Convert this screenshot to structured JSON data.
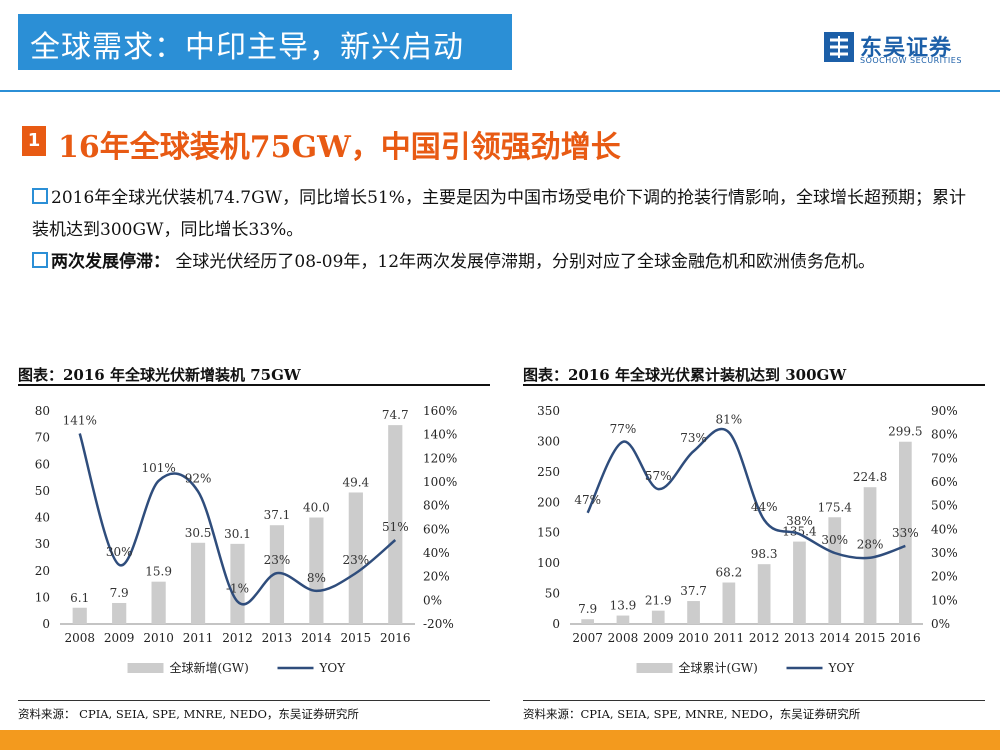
{
  "header": {
    "title": "全球需求：中印主导，新兴启动",
    "logo_cn": "东吴证券",
    "logo_en": "SOOCHOW SECURITIES"
  },
  "section": {
    "number": "1",
    "title": "16年全球装机75GW，中国引领强劲增长"
  },
  "paragraphs": {
    "p1": "2016年全球光伏装机74.7GW，同比增长51%，主要是因为中国市场受电价下调的抢装行情影响，全球增长超预期；累计装机达到300GW，同比增长33%。",
    "p2_bold": "两次发展停滞：",
    "p2": "全球光伏经历了08-09年，12年两次发展停滞期，分别对应了全球金融危机和欧洲债务危机。"
  },
  "charts_meta": {
    "left_title": "图表：2016 年全球光伏新增装机 75GW",
    "right_title": "图表：2016 年全球光伏累计装机达到 300GW",
    "left_source": "资料来源：  CPIA, SEIA, SPE, MNRE, NEDO，东吴证券研究所",
    "right_source": "资料来源：CPIA, SEIA, SPE, MNRE, NEDO，东吴证券研究所"
  },
  "colors": {
    "bar": "#cccccc",
    "line": "#2f4d7c",
    "accent": "#e85a13",
    "brand": "#2b8fd6"
  },
  "chart_data": [
    {
      "type": "bar",
      "categories": [
        "2008",
        "2009",
        "2010",
        "2011",
        "2012",
        "2013",
        "2014",
        "2015",
        "2016"
      ],
      "series": [
        {
          "name": "全球新增(GW)",
          "type": "bar",
          "axis": "left",
          "values": [
            6.1,
            7.9,
            15.9,
            30.5,
            30.1,
            37.1,
            40.0,
            49.4,
            74.7
          ],
          "labels": [
            "6.1",
            "7.9",
            "15.9",
            "30.5",
            "30.1",
            "37.1",
            "40.0",
            "49.4",
            "74.7"
          ]
        },
        {
          "name": "YOY",
          "type": "line",
          "axis": "right",
          "values": [
            141,
            30,
            101,
            92,
            -1,
            23,
            8,
            23,
            51
          ],
          "labels": [
            "141%",
            "30%",
            "101%",
            "92%",
            "-1%",
            "23%",
            "8%",
            "23%",
            "51%"
          ]
        }
      ],
      "y_left": {
        "min": 0,
        "max": 80,
        "ticks": [
          "0",
          "10",
          "20",
          "30",
          "40",
          "50",
          "60",
          "70",
          "80"
        ]
      },
      "y_right": {
        "min": -20,
        "max": 160,
        "ticks": [
          "-20%",
          "0%",
          "20%",
          "40%",
          "60%",
          "80%",
          "100%",
          "120%",
          "140%",
          "160%"
        ]
      },
      "legend": {
        "bar": "全球新增(GW)",
        "line": "YOY",
        "position": "bottom"
      }
    },
    {
      "type": "bar",
      "categories": [
        "2007",
        "2008",
        "2009",
        "2010",
        "2011",
        "2012",
        "2013",
        "2014",
        "2015",
        "2016"
      ],
      "series": [
        {
          "name": "全球累计(GW)",
          "type": "bar",
          "axis": "left",
          "values": [
            7.9,
            13.9,
            21.9,
            37.7,
            68.2,
            98.3,
            135.4,
            175.4,
            224.8,
            299.5
          ],
          "labels": [
            "7.9",
            "13.9",
            "21.9",
            "37.7",
            "68.2",
            "98.3",
            "135.4",
            "175.4",
            "224.8",
            "299.5"
          ]
        },
        {
          "name": "YOY",
          "type": "line",
          "axis": "right",
          "values": [
            47,
            77,
            57,
            73,
            81,
            44,
            38,
            30,
            28,
            33
          ],
          "labels": [
            "47%",
            "77%",
            "57%",
            "73%",
            "81%",
            "44%",
            "38%",
            "30%",
            "28%",
            "33%"
          ]
        }
      ],
      "y_left": {
        "min": 0,
        "max": 350,
        "ticks": [
          "0",
          "50",
          "100",
          "150",
          "200",
          "250",
          "300",
          "350"
        ]
      },
      "y_right": {
        "min": 0,
        "max": 90,
        "ticks": [
          "0%",
          "10%",
          "20%",
          "30%",
          "40%",
          "50%",
          "60%",
          "70%",
          "80%",
          "90%"
        ]
      },
      "legend": {
        "bar": "全球累计(GW)",
        "line": "YOY",
        "position": "bottom"
      }
    }
  ]
}
